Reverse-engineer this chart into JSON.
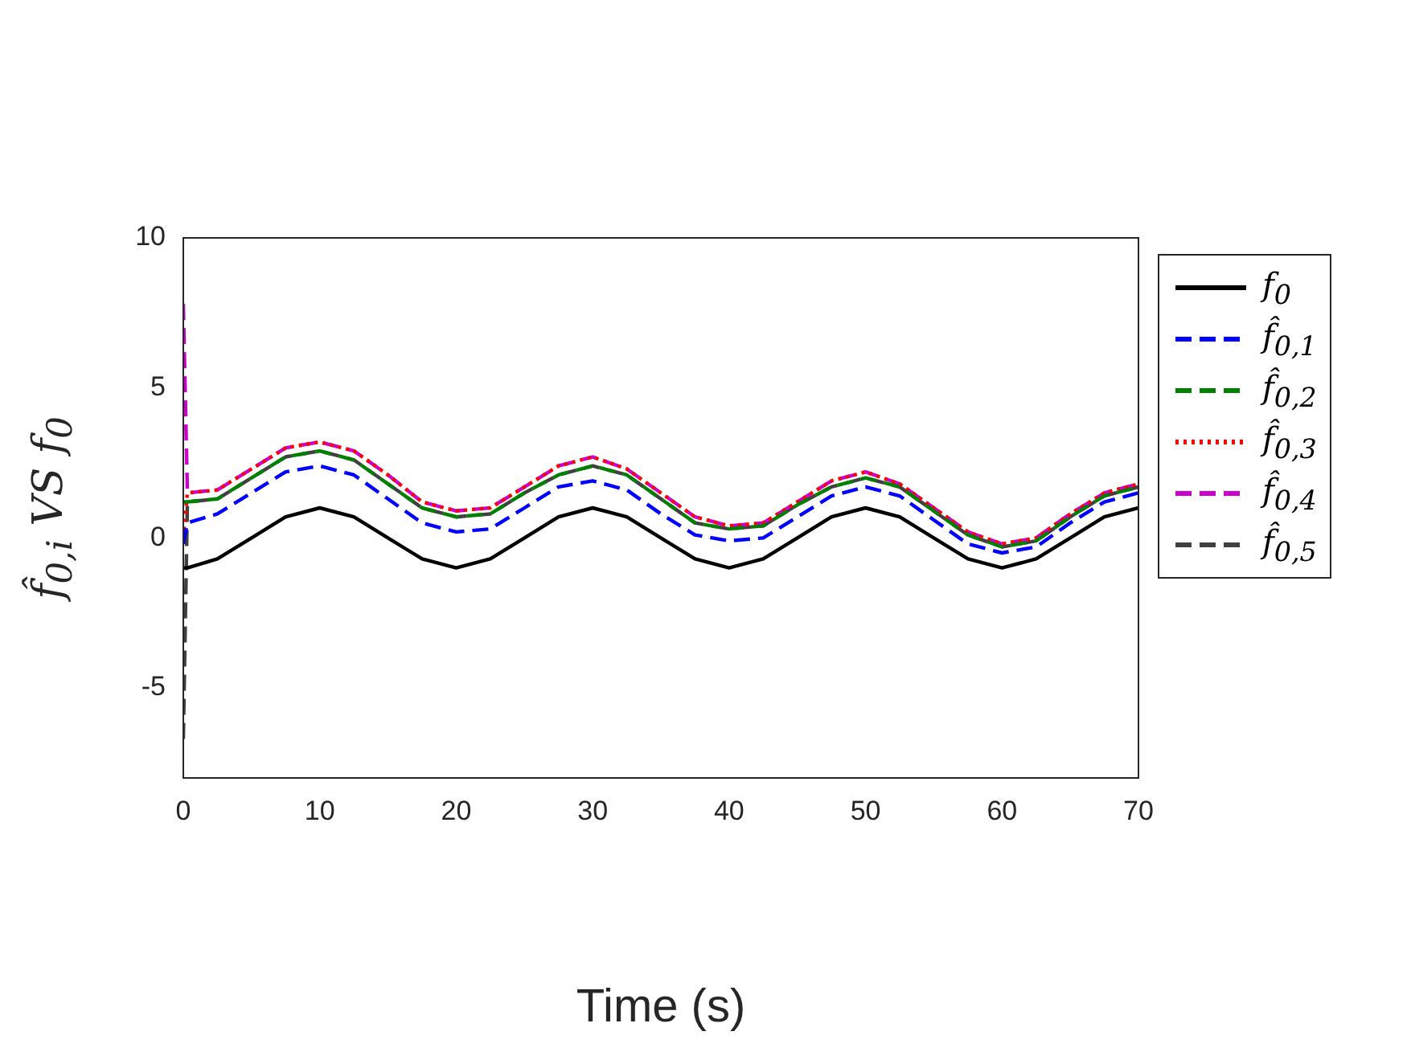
{
  "chart_data": {
    "type": "line",
    "xlabel": "Time (s)",
    "ylabel": "f̂$_{0,i}$ VS f$_{0}$",
    "x": [
      0,
      0.3,
      2.5,
      5,
      7.5,
      10,
      12.5,
      15,
      17.5,
      20,
      22.5,
      25,
      27.5,
      30,
      32.5,
      35,
      37.5,
      40,
      42.5,
      45,
      47.5,
      50,
      52.5,
      55,
      57.5,
      60,
      62.5,
      65,
      67.5,
      70
    ],
    "xlim": [
      0,
      70
    ],
    "xticks": [
      0,
      10,
      20,
      30,
      40,
      50,
      60,
      70
    ],
    "ylim": [
      -8,
      10
    ],
    "yticks": [
      -5,
      0,
      5,
      10
    ],
    "grid": false,
    "legend": "right",
    "marker": "none",
    "series": [
      {
        "name": "f$_{0}$",
        "color": "#000000",
        "line_style": "solid",
        "values": [
          -1,
          -1,
          -0.7,
          0,
          0.7,
          1,
          0.7,
          0,
          -0.7,
          -1,
          -0.7,
          0,
          0.7,
          1,
          0.7,
          0,
          -0.7,
          -1,
          -0.7,
          0,
          0.7,
          1,
          0.7,
          0,
          -0.7,
          -1,
          -0.7,
          0,
          0.7,
          1
        ]
      },
      {
        "name": "f̂$_{0,1}$",
        "color": "#0000ff",
        "line_style": "dashed",
        "values": [
          -0.2,
          0.5,
          0.8,
          1.5,
          2.2,
          2.4,
          2.1,
          1.3,
          0.5,
          0.2,
          0.3,
          1.0,
          1.7,
          1.9,
          1.6,
          0.8,
          0.1,
          -0.1,
          0.0,
          0.7,
          1.4,
          1.7,
          1.4,
          0.6,
          -0.2,
          -0.5,
          -0.3,
          0.5,
          1.2,
          1.5
        ]
      },
      {
        "name": "f̂$_{0,2}$",
        "color": "#008000",
        "line_style": "dashed",
        "values": [
          1.2,
          1.2,
          1.3,
          2.0,
          2.7,
          2.9,
          2.6,
          1.8,
          1.0,
          0.7,
          0.8,
          1.5,
          2.1,
          2.4,
          2.1,
          1.3,
          0.5,
          0.3,
          0.4,
          1.1,
          1.7,
          2.0,
          1.7,
          0.9,
          0.1,
          -0.3,
          -0.1,
          0.7,
          1.4,
          1.7
        ]
      },
      {
        "name": "f̂$_{0,3}$",
        "color": "#ff0000",
        "line_style": "dotted",
        "values": [
          0,
          1.5,
          1.6,
          2.3,
          3.0,
          3.2,
          2.9,
          2.1,
          1.2,
          0.9,
          1.0,
          1.7,
          2.4,
          2.7,
          2.3,
          1.5,
          0.7,
          0.4,
          0.5,
          1.2,
          1.9,
          2.2,
          1.8,
          1.0,
          0.2,
          -0.2,
          0.0,
          0.8,
          1.5,
          1.8
        ]
      },
      {
        "name": "f̂$_{0,4}$",
        "color": "#cc00cc",
        "line_style": "dashed",
        "values": [
          7.8,
          1.5,
          1.6,
          2.3,
          3.0,
          3.2,
          2.9,
          2.1,
          1.2,
          0.9,
          1.0,
          1.7,
          2.4,
          2.7,
          2.3,
          1.5,
          0.7,
          0.4,
          0.5,
          1.2,
          1.9,
          2.2,
          1.8,
          1.0,
          0.2,
          -0.2,
          0.0,
          0.8,
          1.5,
          1.8
        ]
      },
      {
        "name": "f̂$_{0,5}$",
        "color": "#404040",
        "line_style": "dashed",
        "values": [
          -6.7,
          1.2,
          1.3,
          2.0,
          2.7,
          2.9,
          2.6,
          1.8,
          1.0,
          0.7,
          0.8,
          1.5,
          2.1,
          2.4,
          2.1,
          1.3,
          0.5,
          0.3,
          0.4,
          1.1,
          1.7,
          2.0,
          1.7,
          0.9,
          0.1,
          -0.3,
          -0.1,
          0.7,
          1.4,
          1.7
        ]
      }
    ]
  }
}
